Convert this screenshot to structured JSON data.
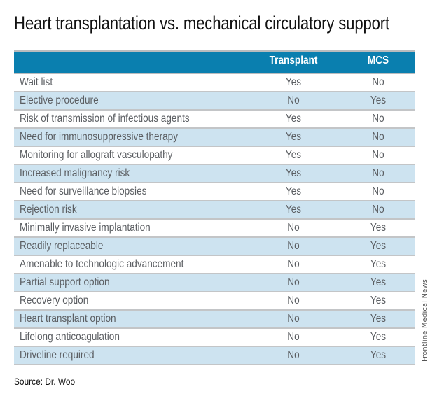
{
  "title": "Heart transplantation vs. mechanical circulatory support",
  "table": {
    "headers": [
      "",
      "Transplant",
      "MCS"
    ],
    "rows": [
      {
        "label": "Wait list",
        "transplant": "Yes",
        "mcs": "No"
      },
      {
        "label": "Elective procedure",
        "transplant": "No",
        "mcs": "Yes"
      },
      {
        "label": "Risk of transmission of infectious agents",
        "transplant": "Yes",
        "mcs": "No"
      },
      {
        "label": "Need for immunosuppressive therapy",
        "transplant": "Yes",
        "mcs": "No"
      },
      {
        "label": "Monitoring for allograft vasculopathy",
        "transplant": "Yes",
        "mcs": "No"
      },
      {
        "label": "Increased malignancy risk",
        "transplant": "Yes",
        "mcs": "No"
      },
      {
        "label": "Need for surveillance biopsies",
        "transplant": "Yes",
        "mcs": "No"
      },
      {
        "label": "Rejection risk",
        "transplant": "Yes",
        "mcs": "No"
      },
      {
        "label": "Minimally invasive implantation",
        "transplant": "No",
        "mcs": "Yes"
      },
      {
        "label": "Readily replaceable",
        "transplant": "No",
        "mcs": "Yes"
      },
      {
        "label": "Amenable to technologic advancement",
        "transplant": "No",
        "mcs": "Yes"
      },
      {
        "label": "Partial support option",
        "transplant": "No",
        "mcs": "Yes"
      },
      {
        "label": "Recovery option",
        "transplant": "No",
        "mcs": "Yes"
      },
      {
        "label": "Heart transplant option",
        "transplant": "No",
        "mcs": "Yes"
      },
      {
        "label": "Lifelong anticoagulation",
        "transplant": "No",
        "mcs": "Yes"
      },
      {
        "label": "Driveline required",
        "transplant": "No",
        "mcs": "Yes"
      }
    ]
  },
  "source": "Source: Dr. Woo",
  "credit": "Frontline Medical News",
  "colors": {
    "header_bg": "#0a7faf",
    "alt_row_bg": "#cde3f0",
    "row_text": "#5b5e62"
  }
}
